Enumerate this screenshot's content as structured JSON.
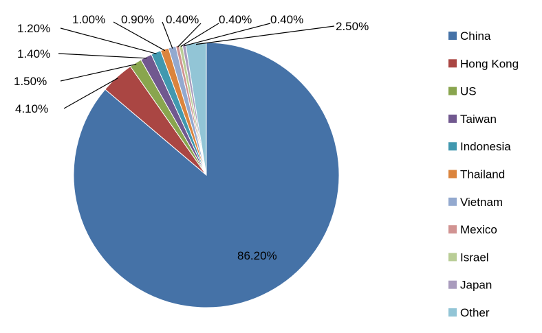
{
  "chart_data": {
    "type": "pie",
    "title": "",
    "legend_position": "right",
    "slices": [
      {
        "name": "China",
        "value": 86.2,
        "label": "86.20%",
        "color": "#4572A7"
      },
      {
        "name": "Hong Kong",
        "value": 4.1,
        "label": "4.10%",
        "color": "#AA4643"
      },
      {
        "name": "US",
        "value": 1.5,
        "label": "1.50%",
        "color": "#89A54E"
      },
      {
        "name": "Taiwan",
        "value": 1.4,
        "label": "1.40%",
        "color": "#71588F"
      },
      {
        "name": "Indonesia",
        "value": 1.2,
        "label": "1.20%",
        "color": "#4198AF"
      },
      {
        "name": "Thailand",
        "value": 1.0,
        "label": "1.00%",
        "color": "#DB843D"
      },
      {
        "name": "Vietnam",
        "value": 0.9,
        "label": "0.90%",
        "color": "#93A9CF"
      },
      {
        "name": "Mexico",
        "value": 0.4,
        "label": "0.40%",
        "color": "#D19392"
      },
      {
        "name": "Israel",
        "value": 0.4,
        "label": "0.40%",
        "color": "#B9CD96"
      },
      {
        "name": "Japan",
        "value": 0.4,
        "label": "0.40%",
        "color": "#A99BBD"
      },
      {
        "name": "Other",
        "value": 2.5,
        "label": "2.50%",
        "color": "#92C5D6"
      }
    ]
  }
}
